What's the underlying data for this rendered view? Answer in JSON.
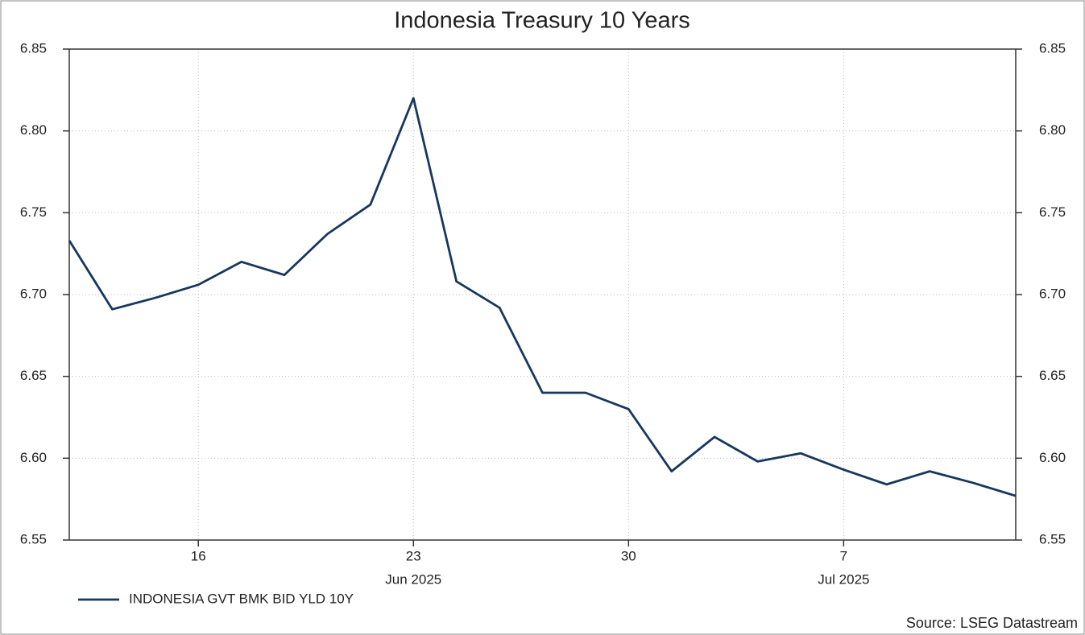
{
  "chart_data": {
    "type": "line",
    "title": "Indonesia Treasury 10 Years",
    "categories": [
      null,
      null,
      null,
      "16",
      null,
      null,
      null,
      null,
      "23",
      null,
      null,
      null,
      null,
      "30",
      null,
      null,
      null,
      null,
      "7",
      null,
      null,
      null,
      null
    ],
    "x_groups": [
      "Jun 2025",
      "Jul 2025"
    ],
    "series": [
      {
        "name": "INDONESIA GVT BMK BID YLD 10Y",
        "color": "#17375e",
        "values": [
          6.733,
          6.691,
          6.698,
          6.706,
          6.72,
          6.712,
          6.737,
          6.755,
          6.82,
          6.708,
          6.692,
          6.64,
          6.64,
          6.63,
          6.592,
          6.613,
          6.598,
          6.603,
          6.593,
          6.584,
          6.592,
          6.585,
          6.577
        ]
      }
    ],
    "ylim": [
      6.55,
      6.85
    ],
    "yticks": [
      {
        "value": 6.55,
        "label": "6.55"
      },
      {
        "value": 6.6,
        "label": "6.60"
      },
      {
        "value": 6.65,
        "label": "6.65"
      },
      {
        "value": 6.7,
        "label": "6.70"
      },
      {
        "value": 6.75,
        "label": "6.75"
      },
      {
        "value": 6.8,
        "label": "6.80"
      },
      {
        "value": 6.85,
        "label": "6.85"
      }
    ],
    "y2lim": [
      6.55,
      6.85
    ],
    "y2ticks": [
      {
        "value": 6.55,
        "label": "6.55"
      },
      {
        "value": 6.6,
        "label": "6.60"
      },
      {
        "value": 6.65,
        "label": "6.65"
      },
      {
        "value": 6.7,
        "label": "6.70"
      },
      {
        "value": 6.75,
        "label": "6.75"
      },
      {
        "value": 6.8,
        "label": "6.80"
      },
      {
        "value": 6.85,
        "label": "6.85"
      }
    ],
    "grid": true,
    "legend": "bottom-left",
    "source": "Source: LSEG Datastream"
  }
}
